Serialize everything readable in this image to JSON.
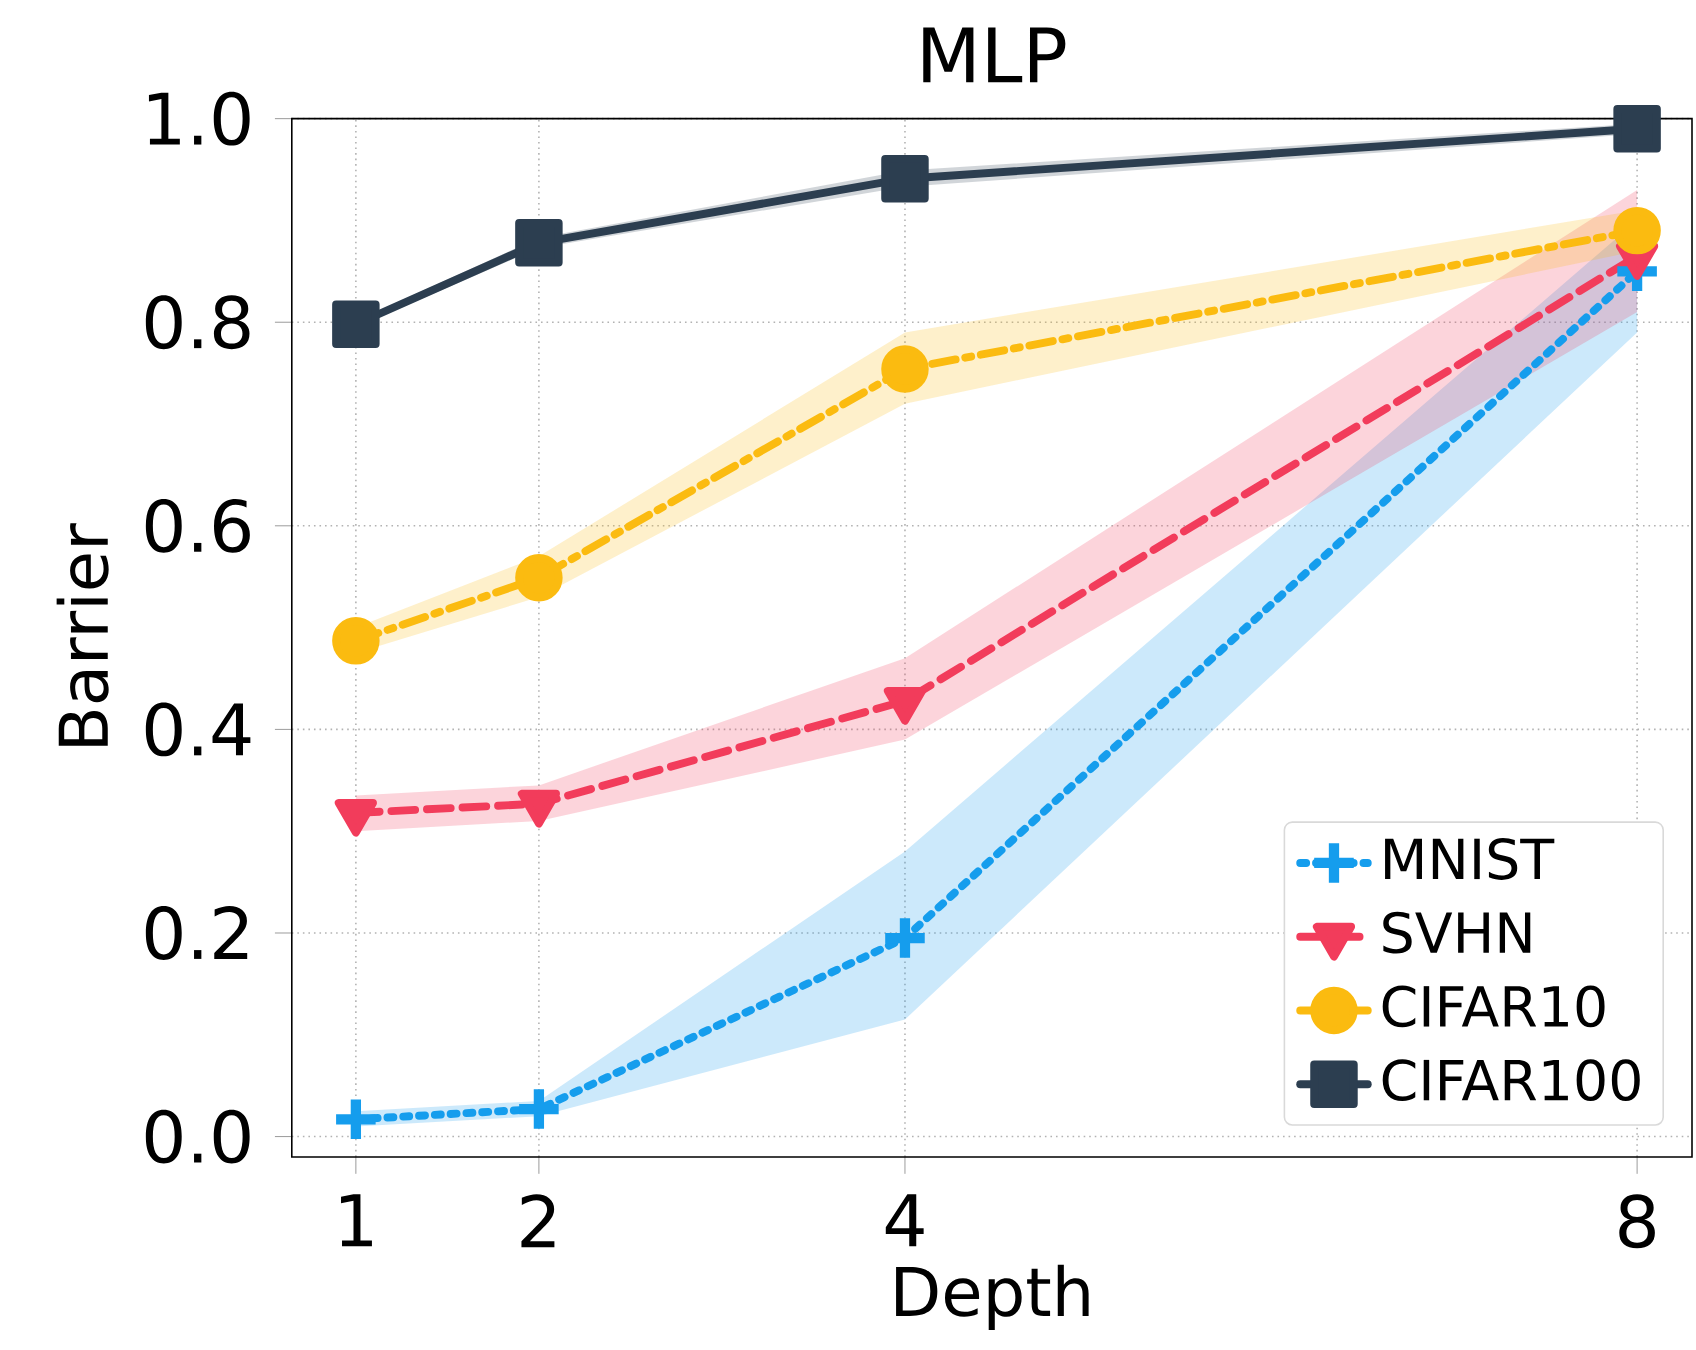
{
  "chart_data": {
    "type": "line",
    "title": "MLP",
    "xlabel": "Depth",
    "ylabel": "Barrier",
    "x": [
      1,
      2,
      4,
      8
    ],
    "xlim": [
      0.65,
      8.3
    ],
    "ylim": [
      -0.02,
      1.0
    ],
    "xticks": [
      1,
      2,
      4,
      8
    ],
    "yticks": [
      {
        "value": 0,
        "label": "0.0"
      },
      0.2,
      0.4,
      0.6,
      0.8,
      {
        "value": 1,
        "label": "1.0"
      }
    ],
    "grid": true,
    "legend": "bottom right",
    "series": [
      {
        "name": "MNIST",
        "color": "#159ded",
        "marker": "cross",
        "line_style": "dotted",
        "values": [
          0.017,
          0.027,
          0.195,
          0.85
        ],
        "lower": [
          0.01,
          0.02,
          0.115,
          0.79
        ],
        "upper": [
          0.025,
          0.035,
          0.28,
          0.9
        ]
      },
      {
        "name": "SVHN",
        "color": "#f23c5b",
        "marker": "triangle",
        "line_style": "dashed",
        "values": [
          0.318,
          0.327,
          0.428,
          0.865
        ],
        "lower": [
          0.3,
          0.31,
          0.39,
          0.81
        ],
        "upper": [
          0.335,
          0.345,
          0.47,
          0.93
        ]
      },
      {
        "name": "CIFAR10",
        "color": "#fbbb10",
        "marker": "circle",
        "line_style": "dashdot",
        "values": [
          0.487,
          0.549,
          0.754,
          0.89
        ],
        "lower": [
          0.475,
          0.53,
          0.72,
          0.87
        ],
        "upper": [
          0.5,
          0.57,
          0.79,
          0.91
        ]
      },
      {
        "name": "CIFAR100",
        "color": "#2c3e50",
        "marker": "square",
        "line_style": "solid",
        "values": [
          0.798,
          0.878,
          0.941,
          0.99
        ],
        "lower": [
          0.795,
          0.873,
          0.933,
          0.985
        ],
        "upper": [
          0.801,
          0.883,
          0.949,
          0.995
        ]
      }
    ]
  }
}
